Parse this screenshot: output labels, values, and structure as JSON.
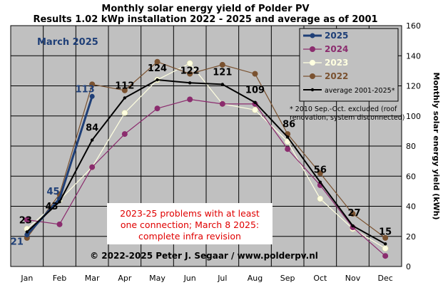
{
  "chart_data": {
    "type": "line",
    "title": "Monthly solar energy yield of Polder PV",
    "subtitle": "Results 1.02 kWp installation 2022 - 2025 and average as of 2001",
    "ylabel": "Monthly solar energy yield (kWh)",
    "categories": [
      "Jan",
      "Feb",
      "Mar",
      "Apr",
      "May",
      "Jun",
      "Jul",
      "Aug",
      "Sep",
      "Oct",
      "Nov",
      "Dec"
    ],
    "ylim": [
      0,
      160
    ],
    "yticks": [
      0,
      20,
      40,
      60,
      80,
      100,
      120,
      140,
      160
    ],
    "grid": true,
    "legend_position": "top-right",
    "month_label": "March 2025",
    "series": [
      {
        "name": "2025",
        "color": "#1f3f77",
        "values": [
          21,
          45,
          113,
          null,
          null,
          null,
          null,
          null,
          null,
          null,
          null,
          null
        ]
      },
      {
        "name": "2024",
        "color": "#8b2c6e",
        "values": [
          31,
          28,
          66,
          88,
          105,
          111,
          108,
          108,
          78,
          54,
          26,
          7
        ]
      },
      {
        "name": "2023",
        "color": "#ffffe0",
        "values": [
          25,
          44,
          66,
          102,
          124,
          135,
          108,
          104,
          83,
          45,
          25,
          12
        ]
      },
      {
        "name": "2022",
        "color": "#7a5230",
        "values": [
          19,
          48,
          121,
          117,
          136,
          128,
          134,
          128,
          88,
          62,
          35,
          19
        ]
      },
      {
        "name": "average 2001-2025*",
        "color": "#000000",
        "values": [
          23,
          43,
          84,
          112,
          124,
          122,
          121,
          109,
          86,
          56,
          27,
          15
        ]
      }
    ],
    "data_labels": [
      {
        "series": "2025",
        "index": 0,
        "text": "21"
      },
      {
        "series": "2025",
        "index": 1,
        "text": "45"
      },
      {
        "series": "2025",
        "index": 2,
        "text": "113"
      },
      {
        "series": "average 2001-2025*",
        "index": 0,
        "text": "23"
      },
      {
        "series": "average 2001-2025*",
        "index": 1,
        "text": "43"
      },
      {
        "series": "average 2001-2025*",
        "index": 2,
        "text": "84"
      },
      {
        "series": "average 2001-2025*",
        "index": 3,
        "text": "112"
      },
      {
        "series": "average 2001-2025*",
        "index": 4,
        "text": "124"
      },
      {
        "series": "average 2001-2025*",
        "index": 5,
        "text": "122"
      },
      {
        "series": "average 2001-2025*",
        "index": 6,
        "text": "121"
      },
      {
        "series": "average 2001-2025*",
        "index": 7,
        "text": "109"
      },
      {
        "series": "average 2001-2025*",
        "index": 8,
        "text": "86"
      },
      {
        "series": "average 2001-2025*",
        "index": 9,
        "text": "56"
      },
      {
        "series": "average 2001-2025*",
        "index": 10,
        "text": "27"
      },
      {
        "series": "average 2001-2025*",
        "index": 11,
        "text": "15"
      }
    ],
    "footnote_lines": [
      "* 2010 Sep.-Oct. excluded (roof",
      "renovation, system disconnected)"
    ],
    "notice_lines": [
      "2023-25 problems  with at least",
      "one connection; March 8 2025:",
      "complete infra revision"
    ],
    "copyright": "© 2022-2025 Peter J. Segaar / www.polderpv.nl",
    "colors": {
      "plot_bg": "#c0c0c0",
      "grid": "#000000",
      "legend_bg": "#c0c0c0",
      "notice_text": "#e00000"
    }
  }
}
